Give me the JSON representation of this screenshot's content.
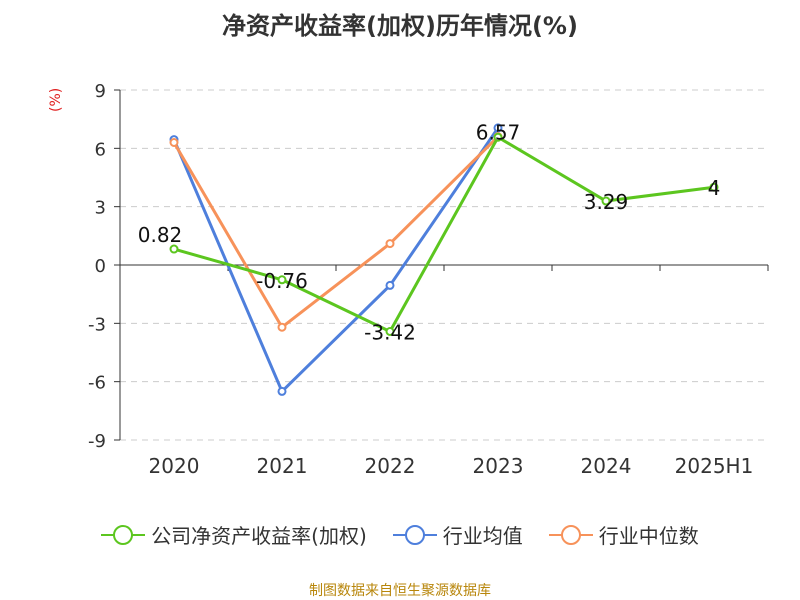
{
  "title": "净资产收益率(加权)历年情况(%)",
  "unit_label": "(%)",
  "source": "制图数据来自恒生聚源数据库",
  "chart_data": {
    "type": "line",
    "categories": [
      "2020",
      "2021",
      "2022",
      "2023",
      "2024",
      "2025H1"
    ],
    "y_ticks": [
      "9",
      "6",
      "3",
      "0",
      "-3",
      "-6",
      "-9"
    ],
    "ylim": [
      -9,
      9
    ],
    "grid": true,
    "legend_position": "bottom",
    "series": [
      {
        "name": "公司净资产收益率(加权)",
        "color": "#5cc61f",
        "values": [
          0.82,
          -0.76,
          -3.42,
          6.57,
          3.29,
          4
        ],
        "labels": [
          "0.82",
          "-0.76",
          "-3.42",
          "6.57",
          "3.29",
          "4"
        ]
      },
      {
        "name": "行业均值",
        "color": "#4e7fdc",
        "values": [
          6.45,
          -6.5,
          -1.05,
          7.05,
          null,
          null
        ]
      },
      {
        "name": "行业中位数",
        "color": "#f7925a",
        "values": [
          6.3,
          -3.2,
          1.1,
          6.6,
          null,
          null
        ]
      }
    ]
  }
}
